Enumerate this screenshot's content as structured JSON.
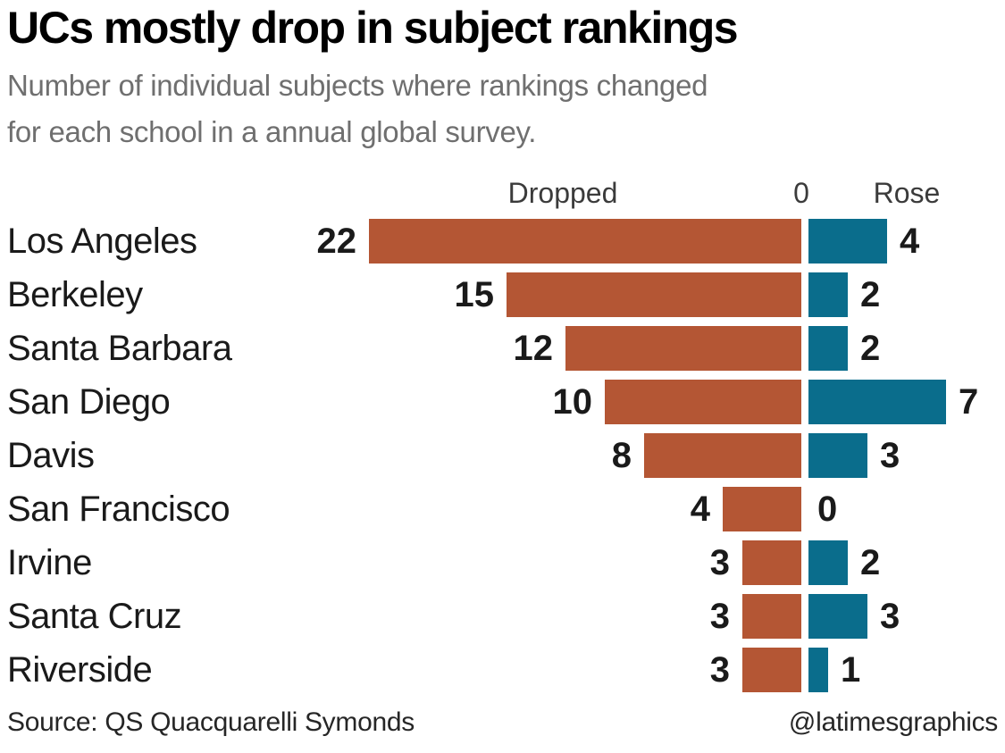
{
  "header": {
    "title": "UCs mostly drop in subject rankings",
    "subtitle_lines": [
      "Number of individual subjects where rankings changed",
      "for each school in a annual global survey."
    ]
  },
  "chart_data": {
    "type": "bar",
    "variant": "diverging-horizontal",
    "column_headers": {
      "left": "Dropped",
      "zero": "0",
      "right": "Rose"
    },
    "categories": [
      "Los Angeles",
      "Berkeley",
      "Santa Barbara",
      "San Diego",
      "Davis",
      "San Francisco",
      "Irvine",
      "Santa Cruz",
      "Riverside"
    ],
    "series": [
      {
        "name": "Dropped",
        "color": "#b45634",
        "values": [
          22,
          15,
          12,
          10,
          8,
          4,
          3,
          3,
          3
        ]
      },
      {
        "name": "Rose",
        "color": "#0a6d8c",
        "values": [
          4,
          2,
          2,
          7,
          3,
          0,
          2,
          3,
          1
        ]
      }
    ],
    "x_range_dropped": [
      0,
      22
    ],
    "x_range_rose": [
      0,
      7
    ],
    "grid": "off",
    "legend": "column headers above chart"
  },
  "footer": {
    "source": "Source: QS Quacquarelli Symonds",
    "credit": "@latimesgraphics"
  },
  "colors": {
    "dropped_bar": "#b45634",
    "rose_bar": "#0a6d8c",
    "title": "#000000",
    "subtitle": "#6f6f6f",
    "column_headers": "#3b3b3b",
    "values": "#1a1a1a",
    "footer": "#262626",
    "background": "#ffffff"
  }
}
